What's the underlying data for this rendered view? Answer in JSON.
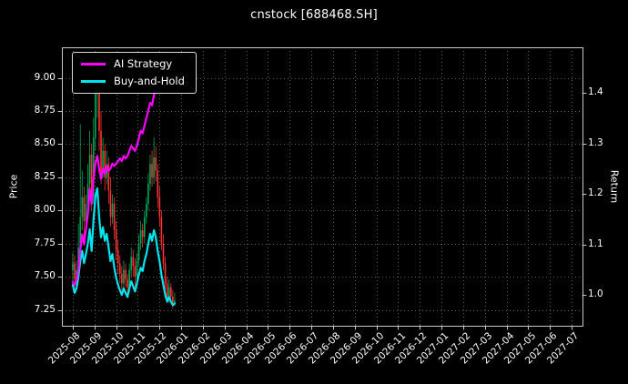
{
  "title": "cnstock [688468.SH]",
  "legend": [
    {
      "label": "AI Strategy",
      "color": "#ff00ff"
    },
    {
      "label": "Buy-and-Hold",
      "color": "#00e5ee"
    }
  ],
  "colors": {
    "background": "#000000",
    "text": "#ffffff",
    "grid": "#5f5f5f",
    "frame": "#c8c8c8",
    "up_candle": "#00a857",
    "down_candle": "#ff3333",
    "ai_line": "#ff00ff",
    "bh_line": "#00e5ee"
  },
  "axes": {
    "left_label": "Price",
    "right_label": "Return",
    "price_ticks": [
      7.25,
      7.5,
      7.75,
      8.0,
      8.25,
      8.5,
      8.75,
      9.0
    ],
    "price_tick_labels": [
      "7.25",
      "7.50",
      "7.75",
      "8.00",
      "8.25",
      "8.50",
      "8.75",
      "9.00"
    ],
    "return_ticks": [
      1.0,
      1.1,
      1.2,
      1.3,
      1.4
    ],
    "return_tick_labels": [
      "1.0",
      "1.1",
      "1.2",
      "1.3",
      "1.4"
    ],
    "x_tick_labels": [
      "2025-08",
      "2025-09",
      "2025-10",
      "2025-11",
      "2025-12",
      "2026-01",
      "2026-02",
      "2026-03",
      "2026-04",
      "2026-05",
      "2026-06",
      "2026-07",
      "2026-08",
      "2026-09",
      "2026-10",
      "2026-11",
      "2026-12",
      "2027-01",
      "2027-02",
      "2027-03",
      "2027-04",
      "2027-05",
      "2027-06",
      "2027-07"
    ],
    "price_range": [
      7.13,
      9.23
    ],
    "return_range": [
      0.939,
      1.49
    ],
    "x_range_months": [
      -0.5,
      23.5
    ]
  },
  "chart_data": {
    "type": "candlestick",
    "title": "cnstock [688468.SH]",
    "left_axis": "Price",
    "right_axis": "Return",
    "grid": "dotted",
    "legend_position": "upper-left",
    "x_month_start": 0,
    "x_month_end": 4.7,
    "x_start_label": "2025-08",
    "x_end_label": "2026-01",
    "candles_ohlc": [
      [
        7.55,
        7.68,
        7.42,
        7.6
      ],
      [
        7.6,
        7.66,
        7.4,
        7.48
      ],
      [
        7.48,
        7.62,
        7.44,
        7.55
      ],
      [
        7.55,
        7.9,
        7.5,
        7.72
      ],
      [
        7.72,
        8.65,
        7.65,
        7.95
      ],
      [
        7.95,
        8.3,
        7.85,
        8.1
      ],
      [
        8.1,
        8.18,
        7.8,
        7.92
      ],
      [
        7.92,
        8.12,
        7.85,
        8.05
      ],
      [
        8.05,
        8.35,
        7.98,
        8.2
      ],
      [
        8.2,
        8.6,
        8.15,
        8.42
      ],
      [
        8.42,
        8.5,
        8.0,
        8.1
      ],
      [
        8.1,
        8.7,
        8.05,
        8.55
      ],
      [
        8.55,
        9.0,
        8.45,
        8.9
      ],
      [
        8.9,
        9.05,
        8.7,
        9.02
      ],
      [
        9.02,
        9.04,
        8.45,
        8.6
      ],
      [
        8.6,
        8.75,
        8.2,
        8.3
      ],
      [
        8.3,
        8.55,
        8.25,
        8.45
      ],
      [
        8.45,
        8.5,
        8.15,
        8.25
      ],
      [
        8.25,
        8.45,
        8.2,
        8.35
      ],
      [
        8.35,
        8.4,
        8.05,
        8.15
      ],
      [
        8.15,
        8.25,
        7.88,
        7.95
      ],
      [
        7.95,
        8.12,
        7.9,
        8.05
      ],
      [
        8.05,
        8.1,
        7.78,
        7.85
      ],
      [
        7.85,
        7.92,
        7.62,
        7.7
      ],
      [
        7.7,
        7.78,
        7.52,
        7.6
      ],
      [
        7.6,
        7.66,
        7.45,
        7.52
      ],
      [
        7.52,
        7.58,
        7.38,
        7.45
      ],
      [
        7.45,
        7.62,
        7.42,
        7.55
      ],
      [
        7.55,
        7.6,
        7.42,
        7.48
      ],
      [
        7.48,
        7.52,
        7.35,
        7.42
      ],
      [
        7.42,
        7.6,
        7.38,
        7.55
      ],
      [
        7.55,
        7.72,
        7.5,
        7.65
      ],
      [
        7.65,
        7.7,
        7.5,
        7.58
      ],
      [
        7.58,
        7.64,
        7.42,
        7.5
      ],
      [
        7.5,
        7.68,
        7.46,
        7.62
      ],
      [
        7.62,
        7.82,
        7.58,
        7.75
      ],
      [
        7.75,
        7.92,
        7.7,
        7.85
      ],
      [
        7.85,
        7.9,
        7.72,
        7.8
      ],
      [
        7.8,
        8.0,
        7.75,
        7.95
      ],
      [
        7.95,
        8.1,
        7.9,
        8.05
      ],
      [
        8.05,
        8.28,
        8.0,
        8.2
      ],
      [
        8.2,
        8.42,
        8.15,
        8.35
      ],
      [
        8.35,
        8.45,
        8.18,
        8.25
      ],
      [
        8.25,
        8.55,
        8.2,
        8.4
      ],
      [
        8.4,
        8.48,
        8.22,
        8.3
      ],
      [
        8.3,
        8.35,
        8.02,
        8.1
      ],
      [
        8.1,
        8.18,
        7.88,
        7.95
      ],
      [
        7.95,
        8.0,
        7.7,
        7.75
      ],
      [
        7.75,
        7.82,
        7.55,
        7.6
      ],
      [
        7.6,
        7.65,
        7.4,
        7.45
      ],
      [
        7.45,
        7.5,
        7.3,
        7.35
      ],
      [
        7.35,
        7.48,
        7.3,
        7.42
      ],
      [
        7.42,
        7.45,
        7.3,
        7.35
      ],
      [
        7.35,
        7.4,
        7.26,
        7.3
      ],
      [
        7.3,
        7.38,
        7.28,
        7.32
      ]
    ],
    "series": [
      {
        "name": "AI Strategy",
        "axis": "return",
        "color": "#ff00ff",
        "values": [
          1.025,
          1.02,
          1.03,
          1.05,
          1.09,
          1.12,
          1.1,
          1.13,
          1.16,
          1.21,
          1.18,
          1.23,
          1.26,
          1.275,
          1.25,
          1.23,
          1.25,
          1.24,
          1.255,
          1.245,
          1.25,
          1.26,
          1.255,
          1.26,
          1.265,
          1.27,
          1.265,
          1.275,
          1.27,
          1.275,
          1.285,
          1.295,
          1.29,
          1.285,
          1.295,
          1.31,
          1.325,
          1.32,
          1.335,
          1.35,
          1.365,
          1.38,
          1.375,
          1.395,
          1.41,
          1.42,
          1.43,
          1.435,
          1.44,
          1.445,
          1.45,
          1.455,
          1.455,
          1.45,
          1.458
        ]
      },
      {
        "name": "Buy-and-Hold",
        "axis": "return",
        "color": "#00e5ee",
        "values": [
          1.02,
          1.004,
          1.013,
          1.036,
          1.067,
          1.087,
          1.063,
          1.081,
          1.101,
          1.13,
          1.087,
          1.148,
          1.195,
          1.211,
          1.154,
          1.114,
          1.134,
          1.107,
          1.121,
          1.094,
          1.067,
          1.081,
          1.054,
          1.034,
          1.02,
          1.009,
          1.0,
          1.013,
          1.004,
          0.996,
          1.013,
          1.027,
          1.017,
          1.007,
          1.023,
          1.04,
          1.054,
          1.047,
          1.067,
          1.081,
          1.101,
          1.121,
          1.107,
          1.128,
          1.114,
          1.087,
          1.067,
          1.04,
          1.02,
          1.0,
          0.987,
          0.996,
          0.987,
          0.98,
          0.983
        ]
      }
    ]
  }
}
